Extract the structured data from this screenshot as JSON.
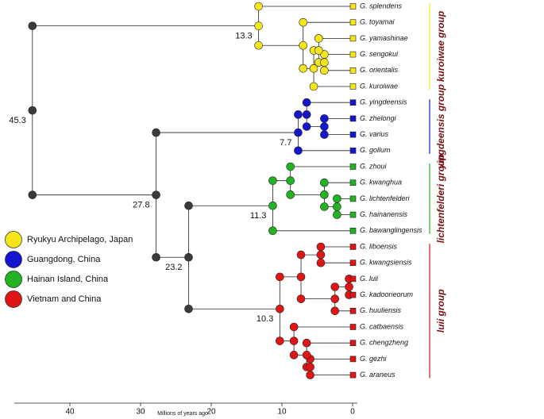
{
  "tree": {
    "age": 45.3,
    "labeled": true,
    "color": "#3a3a3a",
    "children": [
      {
        "age": 13.3,
        "labeled": true,
        "color": "#f5e51a",
        "children": [
          {
            "tip": "G. splendens"
          },
          {
            "age": 7,
            "children": [
              {
                "tip": "G. toyamai"
              },
              {
                "age": 5.5,
                "children": [
                  {
                    "age": 4.8,
                    "children": [
                      {
                        "tip": "G. yamashinae"
                      },
                      {
                        "age": 4,
                        "children": [
                          {
                            "tip": "G. sengokui"
                          },
                          {
                            "tip": "G. orientalis"
                          }
                        ]
                      }
                    ]
                  },
                  {
                    "tip": "G. kuroiwae"
                  }
                ]
              }
            ]
          }
        ]
      },
      {
        "age": 27.8,
        "labeled": true,
        "color": "#3a3a3a",
        "children": [
          {
            "age": 7.7,
            "labeled": true,
            "color": "#1515d0",
            "children": [
              {
                "age": 6.5,
                "children": [
                  {
                    "tip": "G. yingdeensis"
                  },
                  {
                    "age": 4,
                    "children": [
                      {
                        "tip": "G. zhelongi"
                      },
                      {
                        "tip": "G. varius"
                      }
                    ]
                  }
                ]
              },
              {
                "tip": "G. gollum"
              }
            ]
          },
          {
            "age": 23.2,
            "labeled": true,
            "color": "#3a3a3a",
            "children": [
              {
                "age": 11.3,
                "labeled": true,
                "color": "#22b322",
                "children": [
                  {
                    "age": 8.8,
                    "children": [
                      {
                        "tip": "G. zhoui"
                      },
                      {
                        "age": 4,
                        "children": [
                          {
                            "tip": "G. kwanghua"
                          },
                          {
                            "age": 2.2,
                            "children": [
                              {
                                "tip": "G. lichtenfelderi"
                              },
                              {
                                "tip": "G. hainanensis"
                              }
                            ]
                          }
                        ]
                      }
                    ]
                  },
                  {
                    "tip": "G. bawanglingensis"
                  }
                ]
              },
              {
                "age": 10.3,
                "labeled": true,
                "color": "#e01515",
                "children": [
                  {
                    "age": 7.3,
                    "children": [
                      {
                        "age": 4.5,
                        "children": [
                          {
                            "tip": "G. liboensis"
                          },
                          {
                            "tip": "G. kwangsiensis"
                          }
                        ]
                      },
                      {
                        "age": 2.5,
                        "children": [
                          {
                            "age": 0.5,
                            "children": [
                              {
                                "tip": "G. luii"
                              },
                              {
                                "tip": "G. kadoorieorum"
                              }
                            ]
                          },
                          {
                            "tip": "G. huuliensis"
                          }
                        ]
                      }
                    ]
                  },
                  {
                    "age": 8.3,
                    "children": [
                      {
                        "tip": "G. catbaensis"
                      },
                      {
                        "age": 6.5,
                        "children": [
                          {
                            "tip": "G. chengzheng"
                          },
                          {
                            "age": 6,
                            "children": [
                              {
                                "tip": "G. gezhi"
                              },
                              {
                                "tip": "G. araneus"
                              }
                            ]
                          }
                        ]
                      }
                    ]
                  }
                ]
              }
            ]
          }
        ]
      }
    ]
  },
  "groups": [
    {
      "label": "kuroiwae group",
      "color": "#f5e51a"
    },
    {
      "label": "yingdeensis group",
      "color": "#1515d0"
    },
    {
      "label": "lichtenfelderi group",
      "color": "#22b322"
    },
    {
      "label": "luii group",
      "color": "#e01515"
    }
  ],
  "legend": [
    {
      "label": "Ryukyu Archipelago, Japan",
      "color": "#f5e51a"
    },
    {
      "label": "Guangdong, China",
      "color": "#1515d0"
    },
    {
      "label": "Hainan Island, China",
      "color": "#22b322"
    },
    {
      "label": "Vietnam and China",
      "color": "#e01515"
    }
  ],
  "axis": {
    "label": "Millions of years ago",
    "ticks": [
      40,
      30,
      20,
      10,
      0
    ]
  }
}
